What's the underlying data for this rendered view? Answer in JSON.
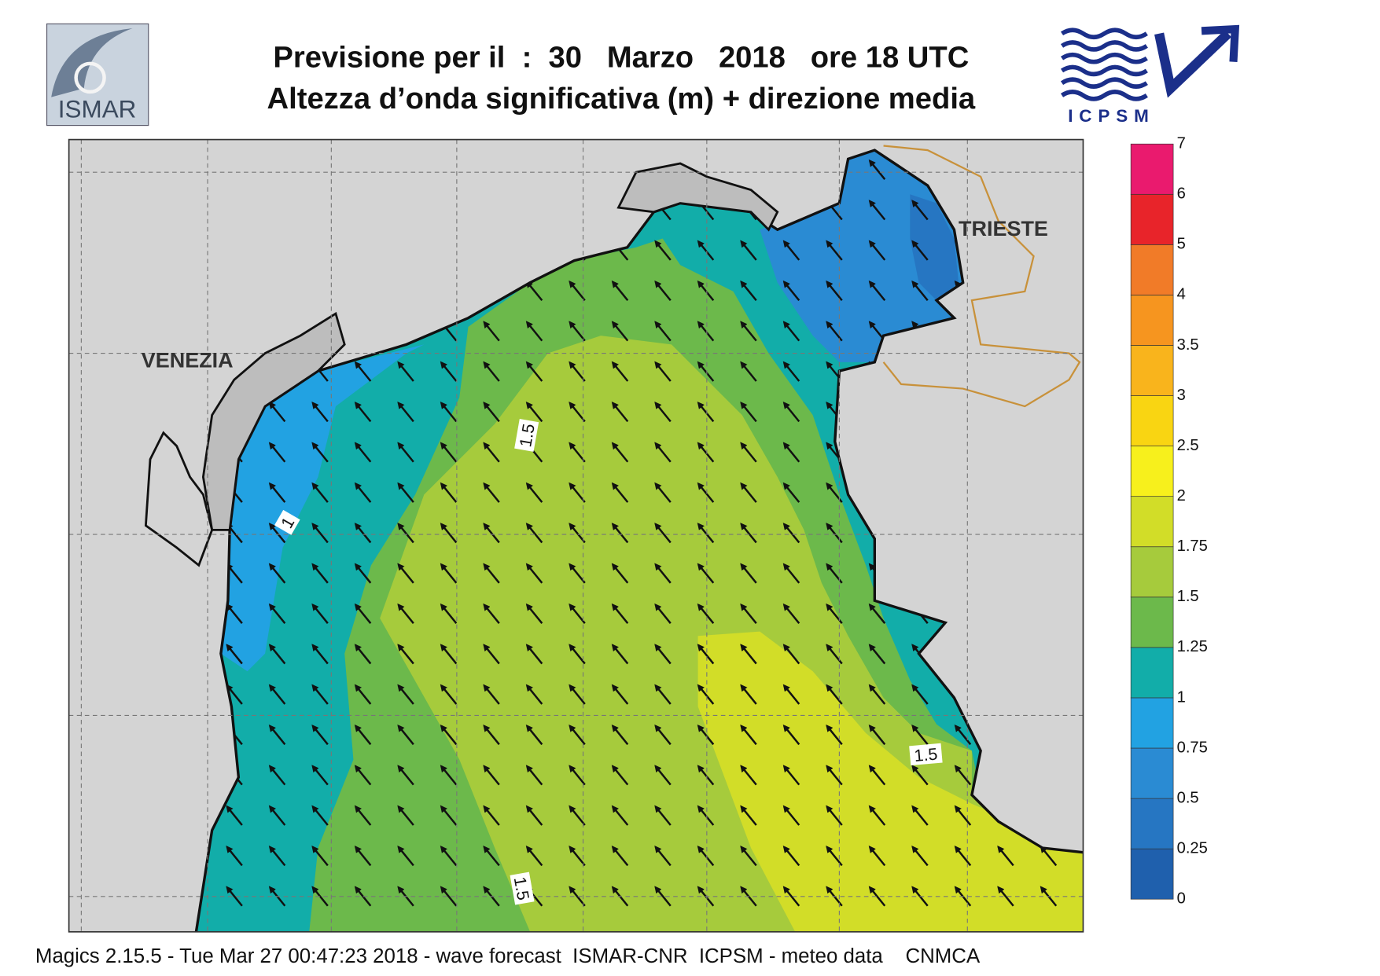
{
  "header": {
    "title_line1": "Previsione per il  :  30   Marzo   2018   ore 18 UTC",
    "title_line2": "Altezza d’onda significativa (m) + direzione media",
    "logo_left": "ISMAR",
    "logo_right": "ICPSM"
  },
  "map": {
    "places": [
      "VENEZIA",
      "TRIESTE"
    ],
    "contour_labels": [
      "1.5",
      "1",
      "1.5",
      "1.5"
    ]
  },
  "colorbar": {
    "levels": [
      0,
      0.25,
      0.5,
      0.75,
      1,
      1.25,
      1.5,
      1.75,
      2,
      2.5,
      3,
      3.5,
      4,
      5,
      6,
      7
    ],
    "colors": [
      "#1f60ad",
      "#2676c2",
      "#2a8bd3",
      "#22a2e2",
      "#12ada9",
      "#6cb94b",
      "#a6cb3c",
      "#d2dd28",
      "#f7f01c",
      "#f9d512",
      "#f9b41c",
      "#f6951f",
      "#f17b28",
      "#e8242a",
      "#ea1a6e"
    ]
  },
  "footer": "Magics 2.15.5 - Tue Mar 27 00:47:23 2018 - wave forecast  ISMAR-CNR  ICPSM - meteo data    CNMCA"
}
